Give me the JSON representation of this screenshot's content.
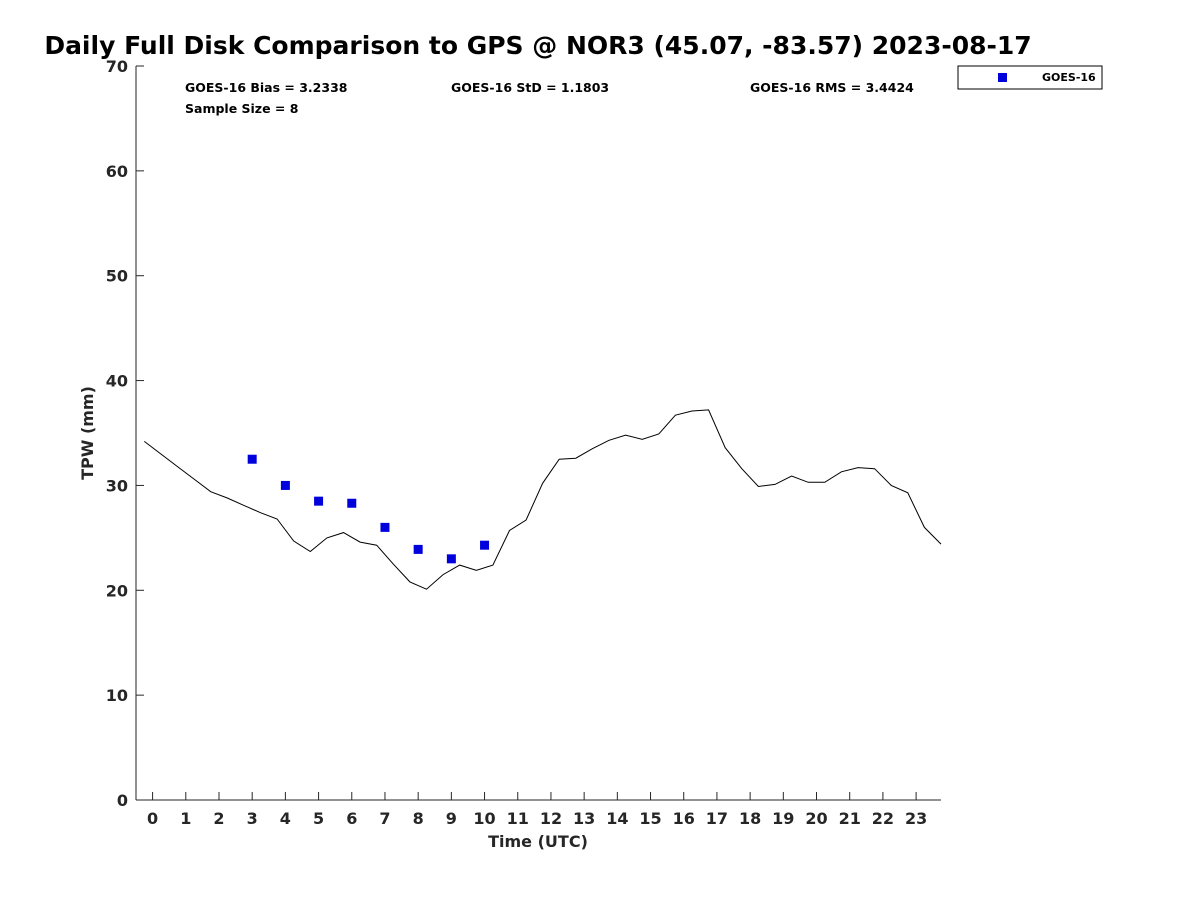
{
  "chart_data": {
    "type": "line",
    "title": "Daily Full Disk Comparison to GPS @ NOR3 (45.07, -83.57) 2023-08-17",
    "xlabel": "Time (UTC)",
    "ylabel": "TPW (mm)",
    "xlim": [
      -0.5,
      23.75
    ],
    "ylim": [
      0,
      70
    ],
    "x_ticks": [
      0,
      1,
      2,
      3,
      4,
      5,
      6,
      7,
      8,
      9,
      10,
      11,
      12,
      13,
      14,
      15,
      16,
      17,
      18,
      19,
      20,
      21,
      22,
      23
    ],
    "y_ticks": [
      0,
      10,
      20,
      30,
      40,
      50,
      60,
      70
    ],
    "grid": false,
    "legend_position": "top-right",
    "stats": {
      "bias": "GOES-16 Bias = 3.2338",
      "std": "GOES-16 StD = 1.1803",
      "rms": "GOES-16 RMS = 3.4424",
      "sample": "Sample Size = 8"
    },
    "series": [
      {
        "kind": "line",
        "color": "#000000",
        "x": [
          -0.25,
          0.25,
          0.75,
          1.25,
          1.75,
          2.25,
          2.75,
          3.25,
          3.75,
          4.25,
          4.75,
          5.25,
          5.75,
          6.25,
          6.75,
          7.25,
          7.75,
          8.25,
          8.75,
          9.25,
          9.75,
          10.25,
          10.75,
          11.25,
          11.75,
          12.25,
          12.75,
          13.25,
          13.75,
          14.25,
          14.75,
          15.25,
          15.75,
          16.25,
          16.75,
          17.25,
          17.75,
          18.25,
          18.75,
          19.25,
          19.75,
          20.25,
          20.75,
          21.25,
          21.75,
          22.25,
          22.75,
          23.25,
          23.75
        ],
        "values": [
          34.2,
          33.0,
          31.8,
          30.6,
          29.4,
          28.8,
          28.1,
          27.4,
          26.8,
          24.7,
          23.7,
          25.0,
          25.5,
          24.6,
          24.3,
          22.5,
          20.8,
          20.1,
          21.5,
          22.4,
          21.9,
          22.4,
          25.7,
          26.7,
          30.2,
          32.5,
          32.6,
          33.5,
          34.3,
          34.8,
          34.4,
          34.9,
          36.7,
          37.1,
          37.2,
          33.6,
          31.6,
          29.9,
          30.1,
          30.9,
          30.3,
          30.3,
          31.3,
          31.7,
          31.6,
          30.0,
          29.3,
          26.0,
          24.4
        ]
      },
      {
        "name": "GOES-16",
        "kind": "scatter",
        "marker": "square",
        "color": "#0000dd",
        "x": [
          3,
          4,
          5,
          6,
          7,
          8,
          9,
          10
        ],
        "values": [
          32.5,
          30.0,
          28.5,
          28.3,
          26.0,
          23.9,
          23.0,
          24.3
        ]
      }
    ]
  }
}
